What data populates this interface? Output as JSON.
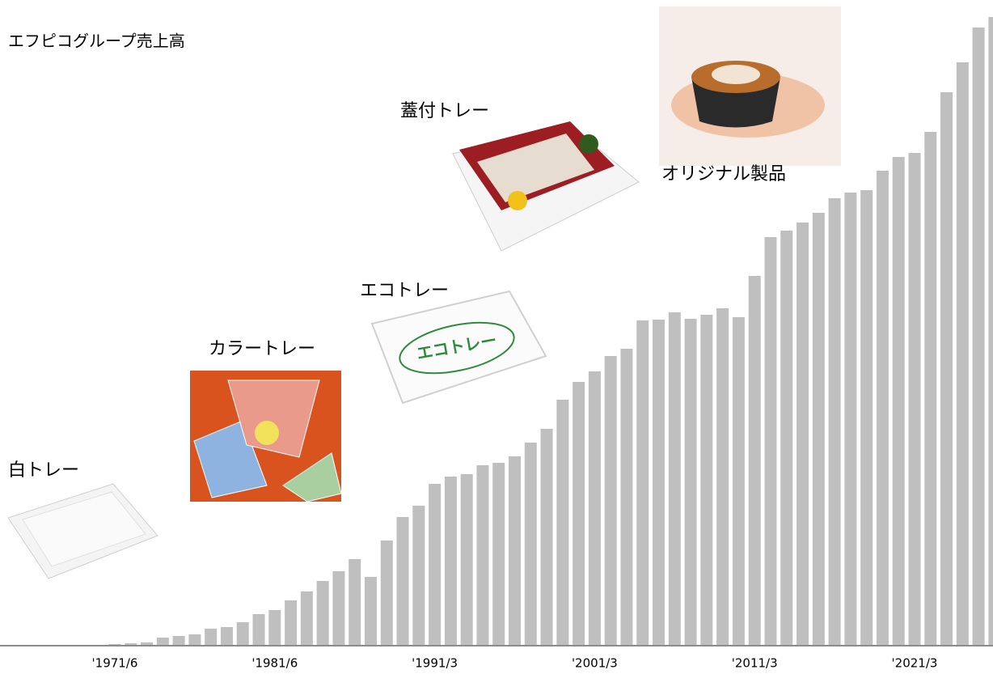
{
  "chart_data": {
    "type": "bar",
    "title": "エフピコグループ売上高",
    "annotations": [
      "白トレー",
      "カラートレー",
      "エコトレー",
      "蓋付トレー",
      "オリジナル製品"
    ],
    "logo_text": "エコトレー",
    "color": "#bfbfbf",
    "categories": [
      "'1971/6",
      null,
      null,
      null,
      null,
      null,
      null,
      null,
      null,
      null,
      "'1981/6",
      null,
      null,
      null,
      null,
      null,
      null,
      null,
      null,
      null,
      "'1991/3",
      null,
      null,
      null,
      null,
      null,
      null,
      null,
      null,
      null,
      "'2001/3",
      null,
      null,
      null,
      null,
      null,
      null,
      null,
      null,
      null,
      "'2011/3",
      null,
      null,
      null,
      null,
      null,
      null,
      null,
      null,
      null,
      "'2021/3",
      null,
      null,
      null,
      null,
      null
    ],
    "values": [
      1,
      2,
      3,
      9,
      11,
      13,
      20,
      22,
      28,
      38,
      43,
      55,
      66,
      79,
      91,
      106,
      84,
      129,
      158,
      172,
      199,
      208,
      211,
      222,
      225,
      233,
      250,
      267,
      303,
      325,
      338,
      357,
      366,
      401,
      402,
      411,
      403,
      408,
      416,
      405,
      456,
      504,
      512,
      522,
      534,
      552,
      559,
      562,
      586,
      603,
      608,
      634,
      683,
      720,
      763,
      776
    ]
  }
}
